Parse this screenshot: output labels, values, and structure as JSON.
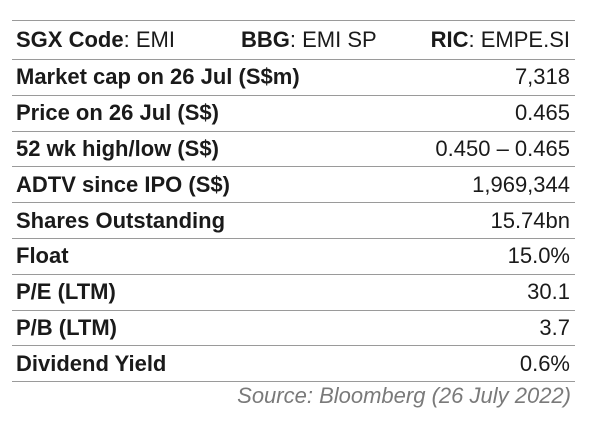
{
  "header": {
    "sgx": {
      "label": "SGX Code",
      "sep": ": ",
      "value": "EMI"
    },
    "bbg": {
      "label": "BBG",
      "sep": ": ",
      "value": "EMI SP"
    },
    "ric": {
      "label": "RIC",
      "sep": ": ",
      "value": "EMPE.SI"
    }
  },
  "rows": [
    {
      "label": "Market cap on 26 Jul (S$m)",
      "value": "7,318"
    },
    {
      "label": "Price on 26 Jul (S$)",
      "value": "0.465"
    },
    {
      "label": "52 wk high/low (S$)",
      "value": "0.450 – 0.465"
    },
    {
      "label": "ADTV since IPO (S$)",
      "value": "1,969,344"
    },
    {
      "label": "Shares Outstanding",
      "value": "15.74bn"
    },
    {
      "label": "Float",
      "value": "15.0%"
    },
    {
      "label": "P/E (LTM)",
      "value": "30.1"
    },
    {
      "label": "P/B (LTM)",
      "value": "3.7"
    },
    {
      "label": "Dividend Yield",
      "value": "0.6%"
    }
  ],
  "source": "Source: Bloomberg (26 July 2022)"
}
